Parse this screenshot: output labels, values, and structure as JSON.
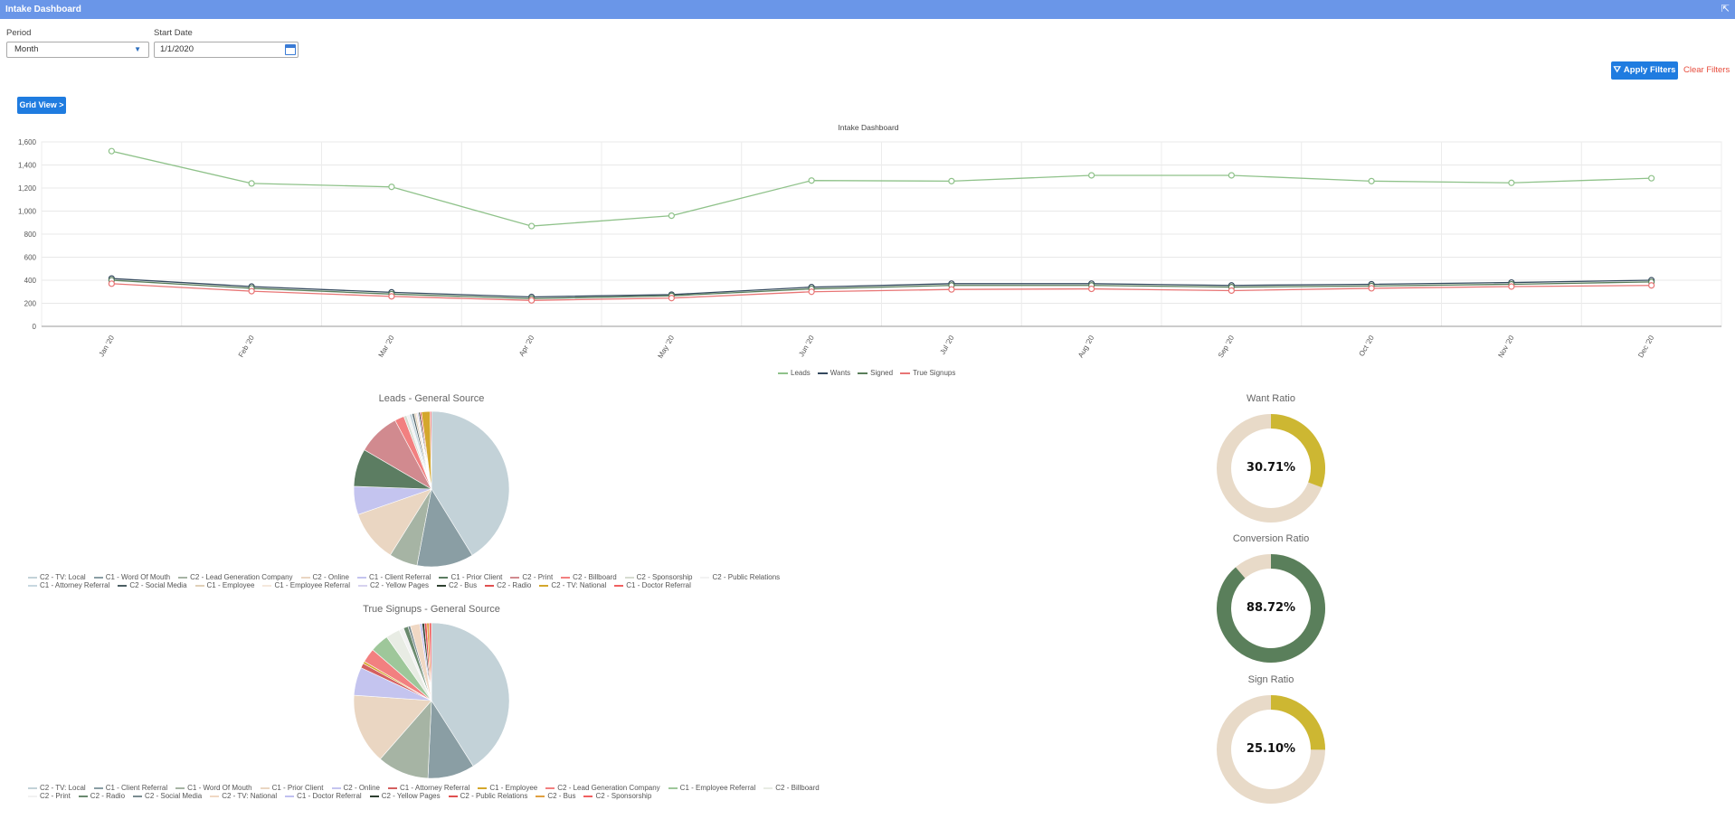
{
  "window": {
    "title": "Intake Dashboard",
    "expand_icon": "⇱"
  },
  "filters": {
    "period_label": "Period",
    "period_value": "Month",
    "start_date_label": "Start Date",
    "start_date_value": "1/1/2020",
    "apply_label": "Apply Filters",
    "clear_label": "Clear Filters"
  },
  "grid_view_label": "Grid View >",
  "chart_data": [
    {
      "type": "line",
      "title": "Intake Dashboard",
      "categories": [
        "Jan '20",
        "Feb '20",
        "Mar '20",
        "Apr '20",
        "May '20",
        "Jun '20",
        "Jul '20",
        "Aug '20",
        "Sep '20",
        "Oct '20",
        "Nov '20",
        "Dec '20"
      ],
      "ylim": [
        0,
        1600
      ],
      "yticks": [
        "0",
        "200",
        "400",
        "600",
        "800",
        "1,000",
        "1,200",
        "1,400",
        "1,600"
      ],
      "ytick_values": [
        0,
        200,
        400,
        600,
        800,
        1000,
        1200,
        1400,
        1600
      ],
      "series": [
        {
          "name": "Leads",
          "color": "#8fc28a",
          "values": [
            1520,
            1240,
            1210,
            870,
            960,
            1265,
            1260,
            1310,
            1310,
            1260,
            1245,
            1285
          ]
        },
        {
          "name": "Wants",
          "color": "#34495e",
          "values": [
            415,
            345,
            295,
            255,
            275,
            340,
            370,
            370,
            355,
            365,
            380,
            400
          ]
        },
        {
          "name": "Signed",
          "color": "#5a7f5b",
          "values": [
            400,
            330,
            280,
            240,
            265,
            325,
            355,
            355,
            340,
            350,
            365,
            385
          ]
        },
        {
          "name": "True Signups",
          "color": "#e87575",
          "values": [
            370,
            305,
            260,
            225,
            245,
            300,
            320,
            325,
            310,
            330,
            345,
            355
          ]
        }
      ]
    },
    {
      "type": "pie",
      "title": "Leads - General Source",
      "labels": [
        "C2 - TV: Local",
        "C1 - Word Of Mouth",
        "C2 - Lead Generation Company",
        "C2 - Online",
        "C1 - Client Referral",
        "C1 - Prior Client",
        "C2 - Print",
        "C2 - Billboard",
        "C2 - Sponsorship",
        "C2 - Public Relations",
        "C1 - Attorney Referral",
        "C2 - Social Media",
        "C1 - Employee",
        "C1 - Employee Referral",
        "C2 - Yellow Pages",
        "C2 - Bus",
        "C2 - Radio",
        "C2 - TV: National",
        "C1 - Doctor Referral"
      ],
      "colors": [
        "#c3d2d8",
        "#8a9ea4",
        "#a6b4a4",
        "#ead6c2",
        "#c4c4ef",
        "#5c7d62",
        "#d18a8f",
        "#f28080",
        "#d6dcd0",
        "#f2f2f2",
        "#c8d8e0",
        "#4c5e63",
        "#e0d0b8",
        "#f5e8dc",
        "#d7d2ef",
        "#2e4030",
        "#e05050",
        "#d4a72c",
        "#f06060"
      ],
      "values": [
        42,
        12,
        6,
        11,
        6,
        8,
        9,
        2,
        0.6,
        0.6,
        0.6,
        0.4,
        0.4,
        0.3,
        0.3,
        0.3,
        0.3,
        1.8,
        0.3
      ]
    },
    {
      "type": "pie",
      "title": "True Signups - General Source",
      "labels": [
        "C2 - TV: Local",
        "C1 - Client Referral",
        "C1 - Word Of Mouth",
        "C1 - Prior Client",
        "C2 - Online",
        "C1 - Attorney Referral",
        "C1 - Employee",
        "C2 - Lead Generation Company",
        "C1 - Employee Referral",
        "C2 - Billboard",
        "C2 - Print",
        "C2 - Radio",
        "C2 - Social Media",
        "C2 - TV: National",
        "C1 - Doctor Referral",
        "C2 - Yellow Pages",
        "C2 - Public Relations",
        "C2 - Bus",
        "C2 - Sponsorship"
      ],
      "colors": [
        "#c3d2d8",
        "#8a9ea4",
        "#a6b4a4",
        "#ead6c2",
        "#c4c4ef",
        "#d46060",
        "#d4a72c",
        "#f28080",
        "#9ec79a",
        "#e8ece4",
        "#f2f2f2",
        "#6a8a6e",
        "#7a8c90",
        "#f0d8c4",
        "#c0c0f0",
        "#2e4030",
        "#e05050",
        "#e0a040",
        "#f06060"
      ],
      "values": [
        42,
        10,
        11,
        15,
        6,
        1,
        0.5,
        3,
        4,
        3,
        1,
        1,
        0.5,
        2,
        0.5,
        0.5,
        0.5,
        0.5,
        0.5
      ]
    },
    {
      "type": "pie",
      "title": "Want Ratio",
      "label": "30.71%",
      "value": 30.71,
      "color": "#cdb732",
      "rest_color": "#e8dac8"
    },
    {
      "type": "pie",
      "title": "Conversion Ratio",
      "label": "88.72%",
      "value": 88.72,
      "color": "#5a7f5b",
      "rest_color": "#e8dac8"
    },
    {
      "type": "pie",
      "title": "Sign Ratio",
      "label": "25.10%",
      "value": 25.1,
      "color": "#cdb732",
      "rest_color": "#e8dac8"
    }
  ]
}
